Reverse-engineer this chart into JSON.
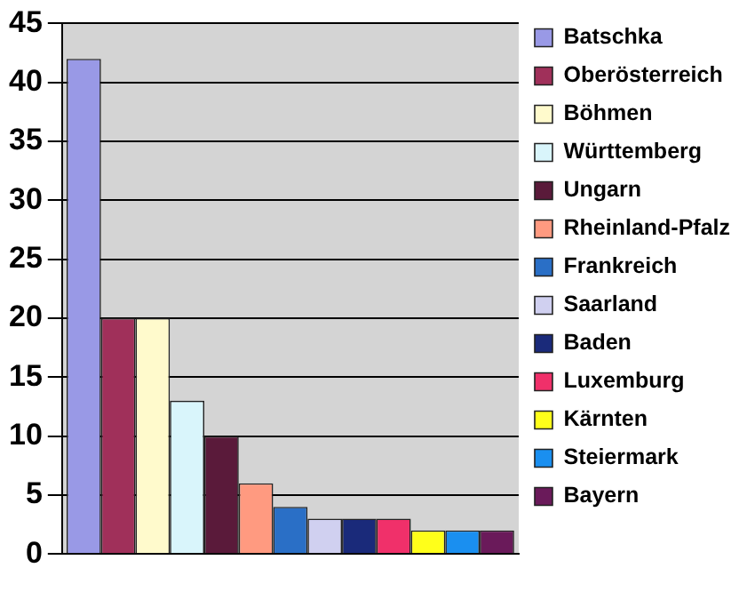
{
  "chart_data": {
    "type": "bar",
    "categories": [
      null
    ],
    "series": [
      {
        "name": "Batschka",
        "color": "#9999e6",
        "values": [
          42
        ]
      },
      {
        "name": "Oberösterreich",
        "color": "#a0305a",
        "values": [
          20
        ]
      },
      {
        "name": "Böhmen",
        "color": "#fffacc",
        "values": [
          20
        ]
      },
      {
        "name": "Württemberg",
        "color": "#d9f5fb",
        "values": [
          13
        ]
      },
      {
        "name": "Ungarn",
        "color": "#5a1a3a",
        "values": [
          10
        ]
      },
      {
        "name": "Rheinland-Pfalz",
        "color": "#ff9a80",
        "values": [
          6
        ]
      },
      {
        "name": "Frankreich",
        "color": "#2a6fc6",
        "values": [
          4
        ]
      },
      {
        "name": "Saarland",
        "color": "#d0d0f0",
        "values": [
          3
        ]
      },
      {
        "name": "Baden",
        "color": "#1a2a7a",
        "values": [
          3
        ]
      },
      {
        "name": "Luxemburg",
        "color": "#f0306a",
        "values": [
          3
        ]
      },
      {
        "name": "Kärnten",
        "color": "#ffff1a",
        "values": [
          2
        ]
      },
      {
        "name": "Steiermark",
        "color": "#1a8ff0",
        "values": [
          2
        ]
      },
      {
        "name": "Bayern",
        "color": "#6a1a5a",
        "values": [
          2
        ]
      }
    ],
    "ylim": [
      0,
      45
    ],
    "yticks": [
      0,
      5,
      10,
      15,
      20,
      25,
      30,
      35,
      40,
      45
    ],
    "grid": "y",
    "legend": "right"
  }
}
